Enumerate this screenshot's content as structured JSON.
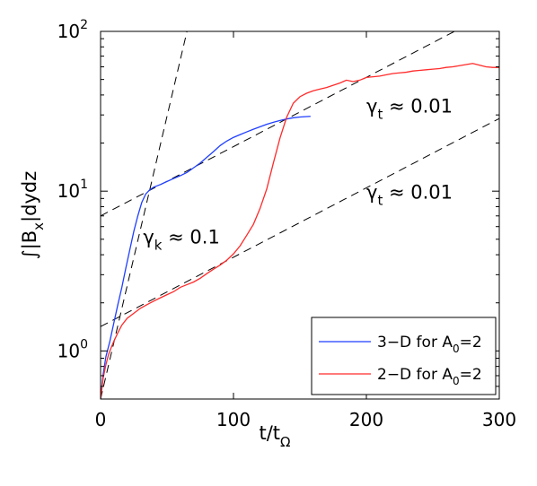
{
  "chart_data": {
    "type": "line",
    "xlabel": "t/t_Ω",
    "ylabel": "∫|B_x|dydz",
    "xlim": [
      0,
      300
    ],
    "ylim": [
      0.5,
      100
    ],
    "yscale": "log",
    "xticks": [
      {
        "value": 0,
        "label": "0"
      },
      {
        "value": 100,
        "label": "100"
      },
      {
        "value": 200,
        "label": "200"
      },
      {
        "value": 300,
        "label": "300"
      }
    ],
    "yticks": [
      {
        "value": 1,
        "base": "10",
        "exp": "0"
      },
      {
        "value": 10,
        "base": "10",
        "exp": "1"
      },
      {
        "value": 100,
        "base": "10",
        "exp": "2"
      }
    ],
    "legend_position": "bottom-right",
    "series": [
      {
        "name": "3−D for A_0=2",
        "color": "#1f3fff",
        "points": [
          [
            0,
            0.5
          ],
          [
            2,
            0.72
          ],
          [
            4,
            0.92
          ],
          [
            7,
            1.15
          ],
          [
            10,
            1.5
          ],
          [
            13,
            1.95
          ],
          [
            16,
            2.5
          ],
          [
            19,
            3.3
          ],
          [
            22,
            4.3
          ],
          [
            25,
            5.6
          ],
          [
            28,
            7.0
          ],
          [
            31,
            8.5
          ],
          [
            34,
            9.6
          ],
          [
            37,
            10.2
          ],
          [
            40,
            10.6
          ],
          [
            45,
            11.0
          ],
          [
            50,
            11.5
          ],
          [
            55,
            12.0
          ],
          [
            60,
            12.5
          ],
          [
            65,
            13.1
          ],
          [
            70,
            14.0
          ],
          [
            75,
            15.0
          ],
          [
            80,
            16.3
          ],
          [
            85,
            17.7
          ],
          [
            90,
            19.3
          ],
          [
            95,
            20.6
          ],
          [
            100,
            21.7
          ],
          [
            105,
            22.6
          ],
          [
            110,
            23.5
          ],
          [
            115,
            24.4
          ],
          [
            120,
            25.3
          ],
          [
            125,
            26.2
          ],
          [
            130,
            27.0
          ],
          [
            135,
            27.7
          ],
          [
            140,
            28.3
          ],
          [
            145,
            28.8
          ],
          [
            150,
            29.1
          ],
          [
            155,
            29.3
          ],
          [
            158,
            29.4
          ]
        ]
      },
      {
        "name": "2−D for A_0=2",
        "color": "#ff2a2a",
        "points": [
          [
            0,
            0.5
          ],
          [
            2,
            0.68
          ],
          [
            4,
            0.82
          ],
          [
            6,
            0.95
          ],
          [
            8,
            1.05
          ],
          [
            10,
            1.15
          ],
          [
            13,
            1.3
          ],
          [
            16,
            1.45
          ],
          [
            20,
            1.6
          ],
          [
            25,
            1.72
          ],
          [
            30,
            1.85
          ],
          [
            35,
            1.95
          ],
          [
            40,
            2.05
          ],
          [
            45,
            2.15
          ],
          [
            50,
            2.25
          ],
          [
            55,
            2.35
          ],
          [
            60,
            2.5
          ],
          [
            65,
            2.6
          ],
          [
            70,
            2.7
          ],
          [
            75,
            2.85
          ],
          [
            80,
            3.05
          ],
          [
            85,
            3.25
          ],
          [
            90,
            3.45
          ],
          [
            95,
            3.7
          ],
          [
            100,
            4.05
          ],
          [
            105,
            4.55
          ],
          [
            110,
            5.3
          ],
          [
            115,
            6.2
          ],
          [
            120,
            7.8
          ],
          [
            125,
            10.3
          ],
          [
            130,
            15.0
          ],
          [
            135,
            21.5
          ],
          [
            140,
            29.0
          ],
          [
            145,
            35.5
          ],
          [
            150,
            39.0
          ],
          [
            155,
            41.0
          ],
          [
            160,
            42.5
          ],
          [
            165,
            43.5
          ],
          [
            170,
            44.5
          ],
          [
            175,
            46.0
          ],
          [
            180,
            47.5
          ],
          [
            185,
            49.5
          ],
          [
            190,
            48.5
          ],
          [
            195,
            49.5
          ],
          [
            200,
            51.5
          ],
          [
            205,
            52.0
          ],
          [
            210,
            52.5
          ],
          [
            215,
            53.5
          ],
          [
            220,
            54.5
          ],
          [
            225,
            55.0
          ],
          [
            230,
            55.5
          ],
          [
            235,
            56.5
          ],
          [
            240,
            57.0
          ],
          [
            245,
            57.5
          ],
          [
            250,
            58.0
          ],
          [
            255,
            58.5
          ],
          [
            260,
            59.5
          ],
          [
            265,
            60.0
          ],
          [
            270,
            61.0
          ],
          [
            275,
            62.0
          ],
          [
            280,
            63.0
          ],
          [
            285,
            61.5
          ],
          [
            290,
            60.0
          ],
          [
            295,
            59.5
          ],
          [
            300,
            59.5
          ]
        ]
      }
    ],
    "fit_lines": [
      {
        "x0": 0,
        "y0": 0.5,
        "x1": 65,
        "y1": 100
      },
      {
        "x0": 0,
        "y0": 7.0,
        "x1": 300,
        "y1": 140
      },
      {
        "x0": 0,
        "y0": 1.42,
        "x1": 300,
        "y1": 28.5
      }
    ],
    "annotations": [
      {
        "symbol": "γ",
        "sub": "t",
        "text": " ≈ 0.01",
        "x": 200,
        "y": 31
      },
      {
        "symbol": "γ",
        "sub": "t",
        "text": " ≈ 0.01",
        "x": 200,
        "y": 9.0
      },
      {
        "symbol": "γ",
        "sub": "k",
        "text": " ≈ 0.1",
        "x": 32,
        "y": 4.7
      }
    ]
  },
  "legend": {
    "entries": [
      {
        "prefix": "3−D for A",
        "sub": "0",
        "suffix": "=2",
        "color": "#1f3fff"
      },
      {
        "prefix": "2−D for A",
        "sub": "0",
        "suffix": "=2",
        "color": "#ff2a2a"
      }
    ]
  },
  "axis_text": {
    "x_main": "t/t",
    "x_sub": "Ω",
    "y_main_a": "∫|B",
    "y_sub": "x",
    "y_main_b": "|dydz"
  }
}
